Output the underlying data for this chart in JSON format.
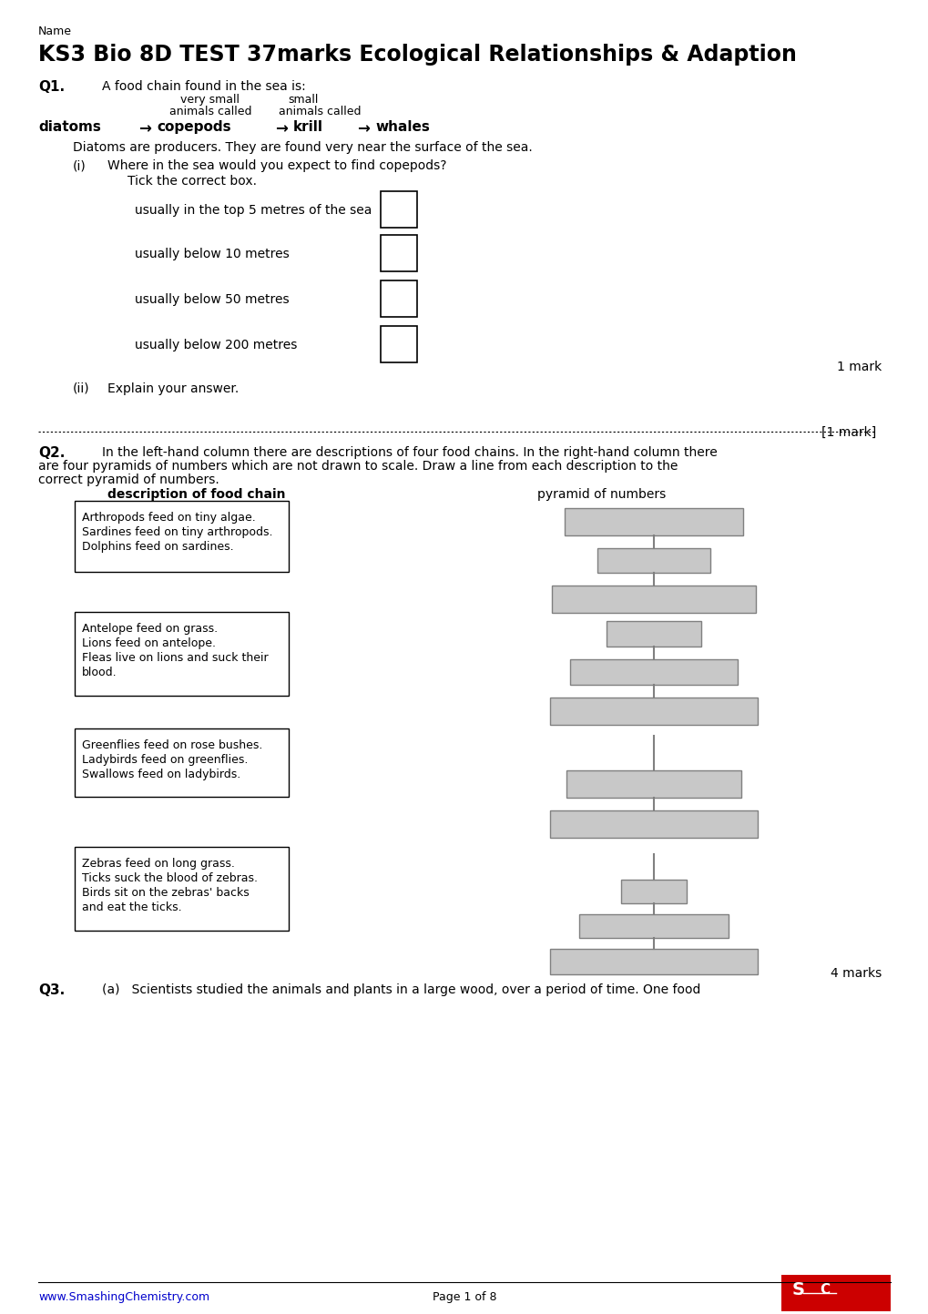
{
  "title": "KS3 Bio 8D TEST 37marks Ecological Relationships & Adaption",
  "name_label": "Name",
  "bg_color": "#ffffff",
  "page_footer": "www.SmashingChemistry.com",
  "page_num": "Page 1 of 8",
  "q1_label": "Q1.",
  "q1_text": "A food chain found in the sea is:",
  "fc_top1": "very small",
  "fc_top2": "small",
  "fc_sub1": "animals called",
  "fc_sub2": "animals called",
  "diatoms_desc": "Diatoms are producers. They are found very near the surface of the sea.",
  "qi_label": "(i)",
  "qi_text": "Where in the sea would you expect to find copepods?",
  "qi_tick": "Tick the correct box.",
  "qi_options": [
    "usually in the top 5 metres of the sea",
    "usually below 10 metres",
    "usually below 50 metres",
    "usually below 200 metres"
  ],
  "qi_mark": "1 mark",
  "qii_label": "(ii)",
  "qii_text": "Explain your answer.",
  "dotted_mark": "[1 mark]",
  "q2_label": "Q2.",
  "q2_line1": "In the left-hand column there are descriptions of four food chains. In the right-hand column there",
  "q2_line2": "are four pyramids of numbers which are not drawn to scale. Draw a line from each description to the",
  "q2_line3": "correct pyramid of numbers.",
  "q2_col1": "description of food chain",
  "q2_col2": "pyramid of numbers",
  "q2_descriptions": [
    "Arthropods feed on tiny algae.\nSardines feed on tiny arthropods.\nDolphins feed on sardines.",
    "Antelope feed on grass.\nLions feed on antelope.\nFleas live on lions and suck their\nblood.",
    "Greenflies feed on rose bushes.\nLadybirds feed on greenflies.\nSwallows feed on ladybirds.",
    "Zebras feed on long grass.\nTicks suck the blood of zebras.\nBirds sit on the zebras' backs\nand eat the ticks."
  ],
  "q2_marks": "4 marks",
  "q3_label": "Q3.",
  "q3_text": "(a)   Scientists studied the animals and plants in a large wood, over a period of time. One food",
  "pyramid_gray": "#c8c8c8",
  "pyramid_border": "#808080",
  "footer_color": "#0000cc"
}
